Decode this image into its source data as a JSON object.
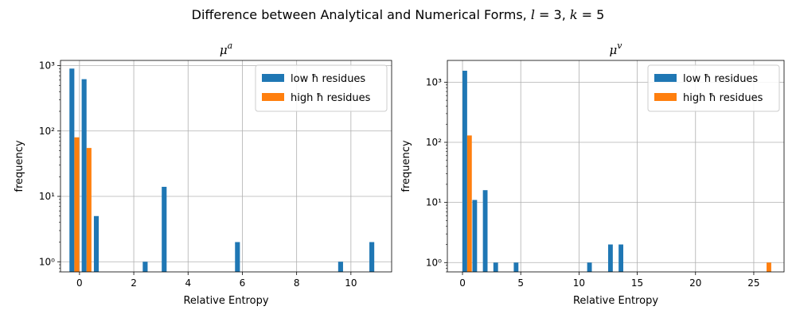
{
  "figure": {
    "suptitle": "Difference between Analytical and Numerical Forms, l = 3, k = 5"
  },
  "chart_data": [
    {
      "type": "bar",
      "title": "μ^a",
      "xlabel": "Relative Entropy",
      "ylabel": "frequency",
      "yscale": "log",
      "xlim": [
        -0.7,
        11.5
      ],
      "ylim": [
        0.7,
        1200
      ],
      "xticks": [
        0,
        2,
        4,
        6,
        8,
        10
      ],
      "yticks": [
        1,
        10,
        100,
        1000
      ],
      "ytick_labels": [
        "10⁰",
        "10¹",
        "10²",
        "10³"
      ],
      "bar_width": 0.18,
      "grid": true,
      "legend": "top-right",
      "series": [
        {
          "name": "low ħ residues",
          "color": "#1f77b4",
          "x": [
            -0.28,
            0.17,
            0.62,
            2.42,
            3.12,
            5.82,
            9.62,
            10.77
          ],
          "values": [
            900,
            620,
            5,
            1,
            14,
            2,
            1,
            2
          ]
        },
        {
          "name": "high ħ residues",
          "color": "#ff7f0e",
          "x": [
            -0.1,
            0.35
          ],
          "values": [
            80,
            55
          ]
        }
      ]
    },
    {
      "type": "bar",
      "title": "μ^v",
      "xlabel": "Relative Entropy",
      "ylabel": "frequency",
      "yscale": "log",
      "xlim": [
        -1.3,
        27.6
      ],
      "ylim": [
        0.7,
        2300
      ],
      "xticks": [
        0,
        5,
        10,
        15,
        20,
        25
      ],
      "yticks": [
        1,
        10,
        100,
        1000
      ],
      "ytick_labels": [
        "10⁰",
        "10¹",
        "10²",
        "10³"
      ],
      "bar_width": 0.4,
      "grid": true,
      "legend": "top-right",
      "series": [
        {
          "name": "low ħ residues",
          "color": "#1f77b4",
          "x": [
            0.2,
            1.05,
            1.95,
            2.85,
            4.6,
            10.9,
            12.7,
            13.6
          ],
          "values": [
            1550,
            11,
            16,
            1,
            1,
            1,
            2,
            2
          ]
        },
        {
          "name": "high ħ residues",
          "color": "#ff7f0e",
          "x": [
            0.6,
            26.3
          ],
          "values": [
            130,
            1
          ]
        }
      ]
    }
  ]
}
